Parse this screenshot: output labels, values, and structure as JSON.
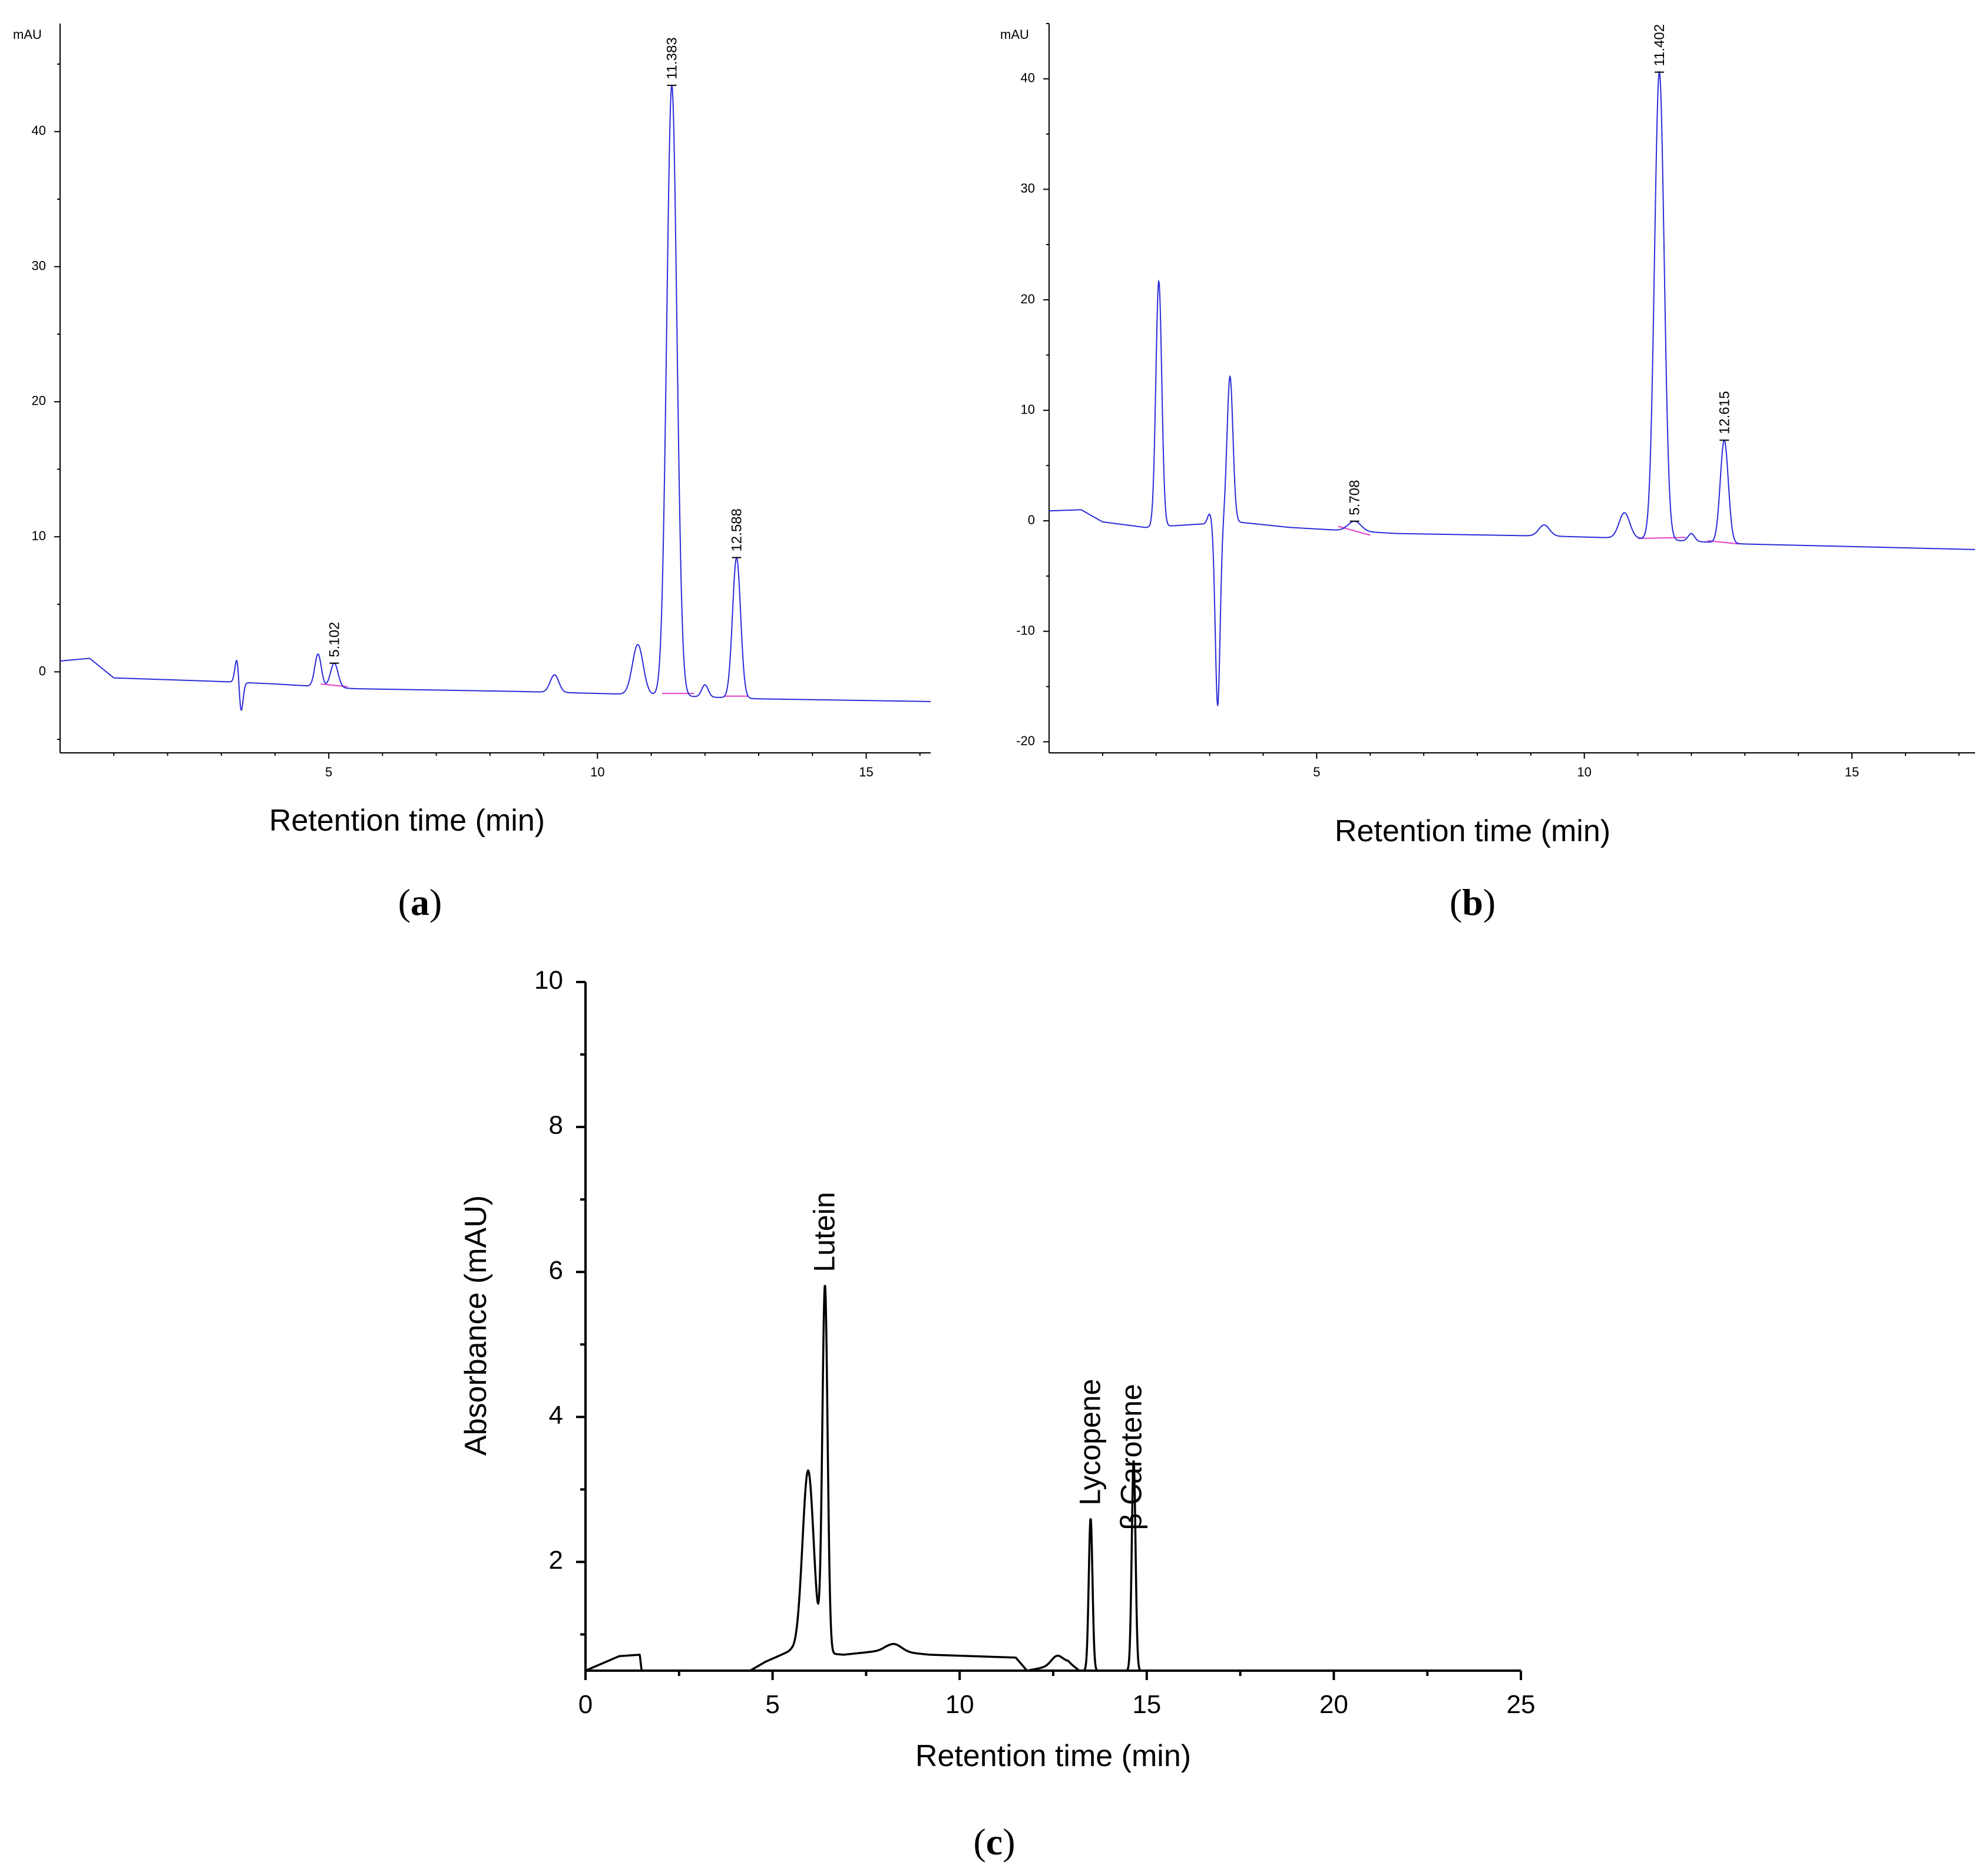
{
  "chart_data": [
    {
      "id": "a",
      "type": "line",
      "panel_label": "a",
      "xlabel": "Retention time (min)",
      "ylabel_unit": "mAU",
      "xlim": [
        0,
        16.2
      ],
      "ylim": [
        -6,
        48
      ],
      "xticks": [
        5,
        10,
        15
      ],
      "yticks": [
        0,
        10,
        20,
        30,
        40
      ],
      "line_color": "#2b2bd9",
      "baseline_color": "#e040c8",
      "peak_labels": [
        {
          "x": 5.102,
          "text": "5.102"
        },
        {
          "x": 11.383,
          "text": "11.383"
        },
        {
          "x": 12.588,
          "text": "12.588"
        }
      ],
      "peaks": [
        {
          "x": 3.3,
          "h": 2.2,
          "w": 0.04
        },
        {
          "x": 3.36,
          "h": -2.6,
          "w": 0.04
        },
        {
          "x": 4.8,
          "h": 2.4,
          "w": 0.06
        },
        {
          "x": 5.102,
          "h": 1.8,
          "w": 0.07
        },
        {
          "x": 9.2,
          "h": 1.3,
          "w": 0.08
        },
        {
          "x": 10.75,
          "h": 3.7,
          "w": 0.1
        },
        {
          "x": 11.383,
          "h": 45.2,
          "w": 0.095
        },
        {
          "x": 12.0,
          "h": 0.9,
          "w": 0.06
        },
        {
          "x": 12.588,
          "h": 10.4,
          "w": 0.075
        }
      ],
      "baseline": [
        [
          0,
          0.8
        ],
        [
          0.55,
          1.0
        ],
        [
          1.0,
          -0.45
        ],
        [
          2.5,
          -0.65
        ],
        [
          3.2,
          -0.75
        ],
        [
          4.0,
          -0.9
        ],
        [
          5.5,
          -1.25
        ],
        [
          8.5,
          -1.45
        ],
        [
          10.5,
          -1.65
        ],
        [
          13.0,
          -2.0
        ],
        [
          16.2,
          -2.2
        ]
      ],
      "integration_segments": [
        [
          4.85,
          -0.9,
          5.35,
          -1.1
        ],
        [
          11.2,
          -1.6,
          11.8,
          -1.6
        ],
        [
          12.35,
          -1.8,
          12.8,
          -1.8
        ]
      ]
    },
    {
      "id": "b",
      "type": "line",
      "panel_label": "b",
      "xlabel": "Retention time (min)",
      "ylabel_unit": "mAU",
      "xlim": [
        0,
        17.3
      ],
      "ylim": [
        -21,
        45
      ],
      "xticks": [
        5,
        10,
        15
      ],
      "yticks": [
        -20,
        -10,
        0,
        10,
        20,
        30,
        40
      ],
      "line_color": "#2b2bd9",
      "baseline_color": "#e040c8",
      "peak_labels": [
        {
          "x": 5.708,
          "text": "5.708"
        },
        {
          "x": 11.402,
          "text": "11.402"
        },
        {
          "x": 12.615,
          "text": "12.615"
        }
      ],
      "peaks": [
        {
          "x": 2.05,
          "h": 22.2,
          "w": 0.055
        },
        {
          "x": 3.0,
          "h": 0.9,
          "w": 0.04
        },
        {
          "x": 3.15,
          "h": -16.5,
          "w": 0.045
        },
        {
          "x": 3.38,
          "h": 13.2,
          "w": 0.055
        },
        {
          "x": 5.708,
          "h": 0.9,
          "w": 0.12
        },
        {
          "x": 9.25,
          "h": 1.0,
          "w": 0.1
        },
        {
          "x": 10.75,
          "h": 2.3,
          "w": 0.1
        },
        {
          "x": 11.402,
          "h": 42.3,
          "w": 0.09
        },
        {
          "x": 12.0,
          "h": 0.7,
          "w": 0.06
        },
        {
          "x": 12.615,
          "h": 9.3,
          "w": 0.075
        }
      ],
      "baseline": [
        [
          0,
          0.9
        ],
        [
          0.6,
          1.0
        ],
        [
          1.0,
          -0.1
        ],
        [
          1.8,
          -0.6
        ],
        [
          3.5,
          -0.1
        ],
        [
          4.5,
          -0.6
        ],
        [
          6.5,
          -1.15
        ],
        [
          9.5,
          -1.4
        ],
        [
          11.0,
          -1.6
        ],
        [
          13.0,
          -2.1
        ],
        [
          17.3,
          -2.6
        ]
      ],
      "integration_segments": [
        [
          5.4,
          -0.5,
          6.0,
          -1.3
        ],
        [
          11.0,
          -1.6,
          11.9,
          -1.5
        ],
        [
          12.3,
          -1.8,
          12.9,
          -2.1
        ]
      ]
    },
    {
      "id": "c",
      "type": "line",
      "panel_label": "c",
      "xlabel": "Retention time (min)",
      "ylabel": "Absorbance (mAU)",
      "xlim": [
        0,
        25
      ],
      "ylim": [
        0.5,
        10
      ],
      "xticks": [
        0,
        5,
        10,
        15,
        20,
        25
      ],
      "yticks": [
        2,
        4,
        6,
        8,
        10
      ],
      "line_color": "#000000",
      "peak_labels": [
        {
          "x": 6.4,
          "text": "Lutein"
        },
        {
          "x": 13.5,
          "text": "Lycopene"
        },
        {
          "x": 14.6,
          "text": "β Carotene"
        }
      ],
      "peaks": [
        {
          "x": 5.95,
          "h": 2.5,
          "w": 0.15
        },
        {
          "x": 6.4,
          "h": 5.05,
          "w": 0.07
        },
        {
          "x": 8.25,
          "h": 0.1,
          "w": 0.2
        },
        {
          "x": 12.6,
          "h": 0.12,
          "w": 0.15
        },
        {
          "x": 13.5,
          "h": 2.1,
          "w": 0.05
        },
        {
          "x": 14.65,
          "h": 2.9,
          "w": 0.05
        }
      ],
      "baseline": [
        [
          0,
          0.5
        ],
        [
          0.9,
          0.7
        ],
        [
          1.45,
          0.72
        ],
        [
          1.5,
          0.5
        ],
        [
          4.4,
          0.5
        ],
        [
          4.8,
          0.62
        ],
        [
          5.5,
          0.78
        ],
        [
          6.9,
          0.72
        ],
        [
          8.0,
          0.78
        ],
        [
          9.2,
          0.72
        ],
        [
          11.5,
          0.68
        ],
        [
          11.8,
          0.5
        ],
        [
          12.3,
          0.55
        ],
        [
          12.9,
          0.62
        ],
        [
          13.2,
          0.5
        ],
        [
          14.4,
          0.5
        ],
        [
          14.9,
          0.5
        ],
        [
          25,
          0.5
        ]
      ]
    }
  ]
}
